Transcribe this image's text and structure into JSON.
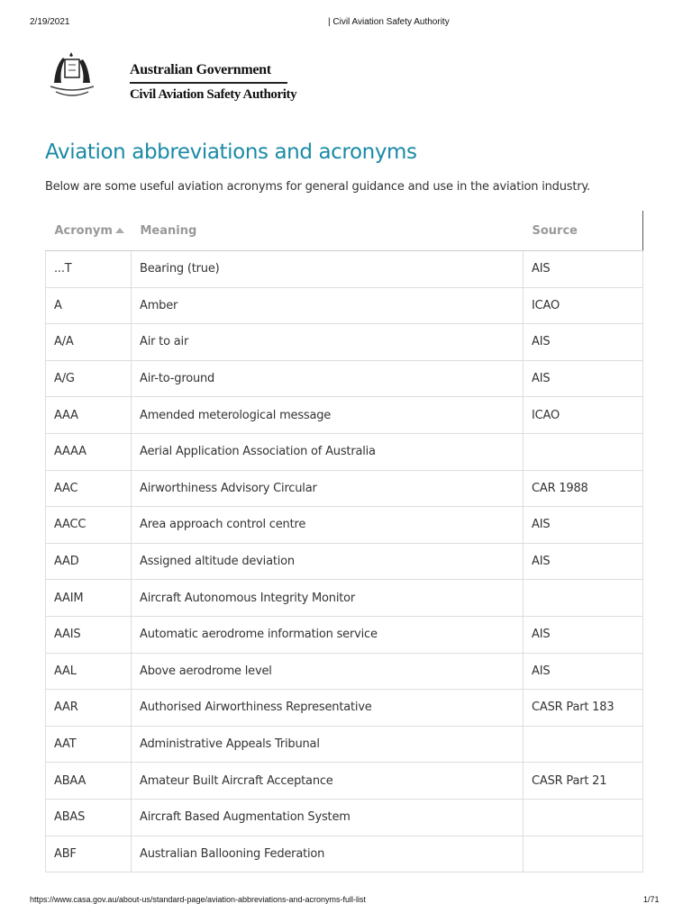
{
  "print_header": {
    "date": "2/19/2021",
    "title": "| Civil Aviation Safety Authority"
  },
  "logo": {
    "line1": "Australian Government",
    "line2": "Civil Aviation Safety Authority"
  },
  "page": {
    "title": "Aviation abbreviations and acronyms",
    "intro": "Below are some useful aviation acronyms for general guidance and use in the aviation industry."
  },
  "table": {
    "columns": [
      "Acronym",
      "Meaning",
      "Source"
    ],
    "sort": {
      "column": "Acronym",
      "direction": "ascending",
      "icon": "sort-up-icon"
    },
    "rows": [
      [
        "...T",
        "Bearing (true)",
        "AIS"
      ],
      [
        "A",
        "Amber",
        "ICAO"
      ],
      [
        "A/A",
        "Air to air",
        "AIS"
      ],
      [
        "A/G",
        "Air-to-ground",
        "AIS"
      ],
      [
        "AAA",
        "Amended meterological message",
        "ICAO"
      ],
      [
        "AAAA",
        "Aerial Application Association of Australia",
        ""
      ],
      [
        "AAC",
        "Airworthiness Advisory Circular",
        "CAR 1988"
      ],
      [
        "AACC",
        "Area approach control centre",
        "AIS"
      ],
      [
        "AAD",
        "Assigned altitude deviation",
        "AIS"
      ],
      [
        "AAIM",
        "Aircraft Autonomous Integrity Monitor",
        ""
      ],
      [
        "AAIS",
        "Automatic aerodrome information service",
        "AIS"
      ],
      [
        "AAL",
        "Above aerodrome level",
        "AIS"
      ],
      [
        "AAR",
        "Authorised Airworthiness Representative",
        "CASR Part 183"
      ],
      [
        "AAT",
        "Administrative Appeals Tribunal",
        ""
      ],
      [
        "ABAA",
        "Amateur Built Aircraft Acceptance",
        "CASR Part 21"
      ],
      [
        "ABAS",
        "Aircraft Based Augmentation System",
        ""
      ],
      [
        "ABF",
        "Australian Ballooning Federation",
        ""
      ]
    ]
  },
  "print_footer": {
    "url": "https://www.casa.gov.au/about-us/standard-page/aviation-abbreviations-and-acronyms-full-list",
    "page": "1/71"
  },
  "colors": {
    "title": "#1b8aa6",
    "header_text": "#999999",
    "border": "#dddddd"
  }
}
